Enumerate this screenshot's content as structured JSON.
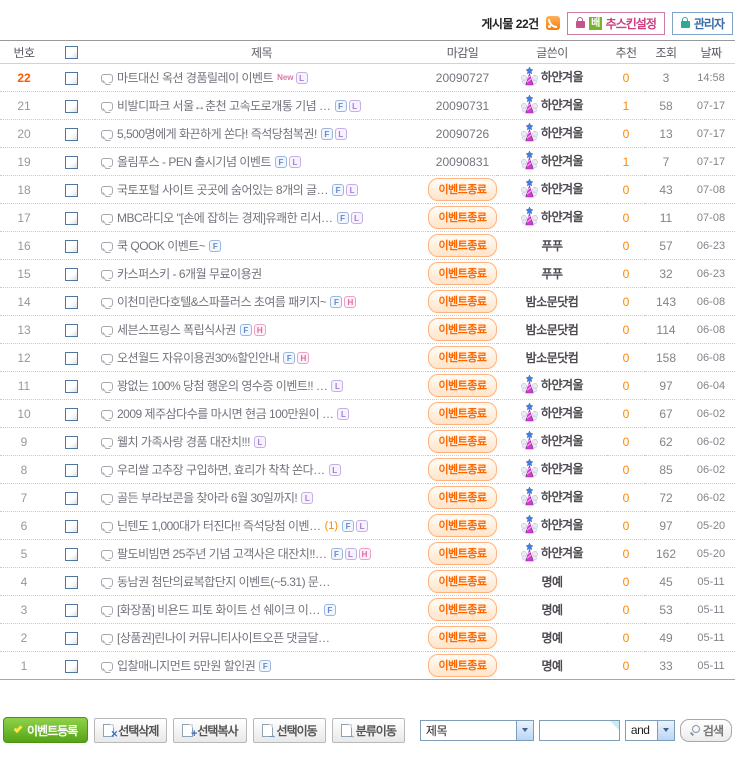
{
  "header": {
    "post_count": "게시물 22건",
    "skin_button": {
      "highlight_char": "배",
      "label_rest": "추스킨설정"
    },
    "admin_button": {
      "label": "관리자"
    }
  },
  "table": {
    "columns": {
      "num": "번호",
      "title": "제목",
      "deadline": "마감일",
      "writer": "글쓴이",
      "recommend": "추천",
      "views": "조회",
      "date": "날짜"
    },
    "badge_ended": "이벤트종료",
    "flag_labels": {
      "F": "F",
      "L": "L",
      "H": "H",
      "new": "New"
    },
    "rows": [
      {
        "num": "22",
        "highlight": true,
        "title": "마트대신 옥션 경품릴레이 이벤트",
        "flags": [
          "new",
          "L"
        ],
        "comment": null,
        "deadline": "20090727",
        "ended": false,
        "writer": "하얀겨울",
        "avatar": true,
        "rec": "0",
        "views": "3",
        "date": "14:58"
      },
      {
        "num": "21",
        "title": "비발디파크 서울↔춘천 고속도로개통 기념 …",
        "flags": [
          "F",
          "L"
        ],
        "deadline": "20090731",
        "ended": false,
        "writer": "하얀겨울",
        "avatar": true,
        "rec": "1",
        "views": "58",
        "date": "07-17"
      },
      {
        "num": "20",
        "title": "5,500명에게 화끈하게 쏜다! 즉석당첨복권!",
        "flags": [
          "F",
          "L"
        ],
        "deadline": "20090726",
        "ended": false,
        "writer": "하얀겨울",
        "avatar": true,
        "rec": "0",
        "views": "13",
        "date": "07-17"
      },
      {
        "num": "19",
        "title": "올림푸스 - PEN 출시기념 이벤트",
        "flags": [
          "F",
          "L"
        ],
        "deadline": "20090831",
        "ended": false,
        "writer": "하얀겨울",
        "avatar": true,
        "rec": "1",
        "views": "7",
        "date": "07-17"
      },
      {
        "num": "18",
        "title": "국토포털 사이트 곳곳에 숨어있는 8개의 글…",
        "flags": [
          "F",
          "L"
        ],
        "ended": true,
        "writer": "하얀겨울",
        "avatar": true,
        "rec": "0",
        "views": "43",
        "date": "07-08"
      },
      {
        "num": "17",
        "title": "MBC라디오 \"[손에 잡히는 경제]유쾌한 리서…",
        "flags": [
          "F",
          "L"
        ],
        "ended": true,
        "writer": "하얀겨울",
        "avatar": true,
        "rec": "0",
        "views": "11",
        "date": "07-08"
      },
      {
        "num": "16",
        "title": "쿡 QOOK 이벤트~",
        "flags": [
          "F"
        ],
        "ended": true,
        "writer": "푸푸",
        "avatar": false,
        "rec": "0",
        "views": "57",
        "date": "06-23"
      },
      {
        "num": "15",
        "title": "카스퍼스키 - 6개월 무료이용권",
        "flags": [],
        "ended": true,
        "writer": "푸푸",
        "avatar": false,
        "rec": "0",
        "views": "32",
        "date": "06-23"
      },
      {
        "num": "14",
        "title": "이천미란다호텔&스파플러스 초여름 패키지~",
        "flags": [
          "F",
          "H"
        ],
        "ended": true,
        "writer": "밤소문닷컴",
        "avatar": false,
        "rec": "0",
        "views": "143",
        "date": "06-08"
      },
      {
        "num": "13",
        "title": "세븐스프링스 폭립식사권",
        "flags": [
          "F",
          "H"
        ],
        "ended": true,
        "writer": "밤소문닷컴",
        "avatar": false,
        "rec": "0",
        "views": "114",
        "date": "06-08"
      },
      {
        "num": "12",
        "title": "오션월드 자유이용권30%할인안내",
        "flags": [
          "F",
          "H"
        ],
        "ended": true,
        "writer": "밤소문닷컴",
        "avatar": false,
        "rec": "0",
        "views": "158",
        "date": "06-08"
      },
      {
        "num": "11",
        "title": "꽝없는 100% 당첨 행운의 영수증 이벤트!! …",
        "flags": [
          "L"
        ],
        "ended": true,
        "writer": "하얀겨울",
        "avatar": true,
        "rec": "0",
        "views": "97",
        "date": "06-04"
      },
      {
        "num": "10",
        "title": "2009 제주삼다수를 마시면 현금 100만원이 …",
        "flags": [
          "L"
        ],
        "ended": true,
        "writer": "하얀겨울",
        "avatar": true,
        "rec": "0",
        "views": "67",
        "date": "06-02"
      },
      {
        "num": "9",
        "title": "웰치 가족사랑 경품 대잔치!!!",
        "flags": [
          "L"
        ],
        "ended": true,
        "writer": "하얀겨울",
        "avatar": true,
        "rec": "0",
        "views": "62",
        "date": "06-02"
      },
      {
        "num": "8",
        "title": "우리쌀 고추장 구입하면, 효리가 착착 쏜다…",
        "flags": [
          "L"
        ],
        "ended": true,
        "writer": "하얀겨울",
        "avatar": true,
        "rec": "0",
        "views": "85",
        "date": "06-02"
      },
      {
        "num": "7",
        "title": "골든 부라보콘을 찾아라 6월 30일까지!",
        "flags": [
          "L"
        ],
        "ended": true,
        "writer": "하얀겨울",
        "avatar": true,
        "rec": "0",
        "views": "72",
        "date": "06-02"
      },
      {
        "num": "6",
        "title": "닌텐도 1,000대가 터진다!! 즉석당첨 이벤…",
        "flags": [
          "F",
          "L"
        ],
        "comment": "1",
        "ended": true,
        "writer": "하얀겨울",
        "avatar": true,
        "rec": "0",
        "views": "97",
        "date": "05-20"
      },
      {
        "num": "5",
        "title": "팔도비빔면 25주년 기념 고객사은 대잔치!!…",
        "flags": [
          "F",
          "L",
          "H"
        ],
        "ended": true,
        "writer": "하얀겨울",
        "avatar": true,
        "rec": "0",
        "views": "162",
        "date": "05-20"
      },
      {
        "num": "4",
        "title": "동남권 첨단의료복합단지 이벤트(~5.31) 문…",
        "flags": [],
        "ended": true,
        "writer": "명예",
        "avatar": false,
        "rec": "0",
        "views": "45",
        "date": "05-11"
      },
      {
        "num": "3",
        "title": "[화장품] 비욘드 피토 화이트 선 쉐이크 이…",
        "flags": [
          "F"
        ],
        "ended": true,
        "writer": "명예",
        "avatar": false,
        "rec": "0",
        "views": "53",
        "date": "05-11"
      },
      {
        "num": "2",
        "title": "[상품권]린나이 커뮤니티사이트오픈 댓글달…",
        "flags": [],
        "ended": true,
        "writer": "명예",
        "avatar": false,
        "rec": "0",
        "views": "49",
        "date": "05-11"
      },
      {
        "num": "1",
        "title": "입찰매니지먼트 5만원 할인권",
        "flags": [
          "F"
        ],
        "ended": true,
        "writer": "명예",
        "avatar": false,
        "rec": "0",
        "views": "33",
        "date": "05-11"
      }
    ]
  },
  "toolbar": {
    "register": "이벤트등록",
    "delete": "선택삭제",
    "copy": "선택복사",
    "move": "선택이동",
    "category_move": "분류이동"
  },
  "search": {
    "field_selected": "제목",
    "input_value": "",
    "operator_selected": "and",
    "button_label": "검색"
  },
  "colors": {
    "accent_orange": "#ff6600",
    "badge_border": "#ffb27c",
    "register_green": "#55a416",
    "skin_pink": "#cc3e7e",
    "admin_blue": "#3a6ca8",
    "title_gray": "#73737e"
  }
}
